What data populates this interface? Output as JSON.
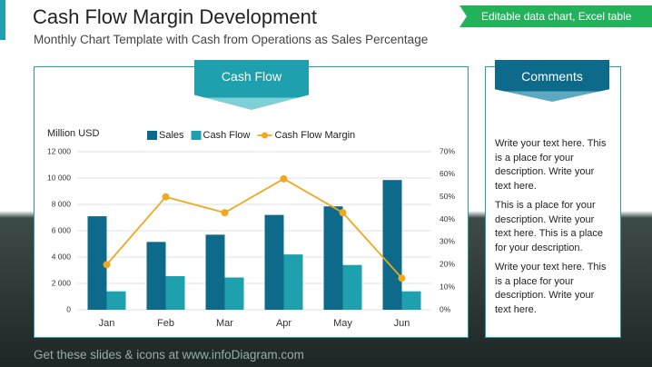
{
  "header": {
    "title": "Cash Flow Margin Development",
    "subtitle": "Monthly Chart Template with Cash from Operations as Sales Percentage",
    "badge": "Editable data chart, Excel table"
  },
  "chart_data": {
    "type": "bar",
    "title": "Cash Flow",
    "y_label": "Million USD",
    "categories": [
      "Jan",
      "Feb",
      "Mar",
      "Apr",
      "May",
      "Jun"
    ],
    "series": [
      {
        "name": "Sales",
        "color": "#0e6a8a",
        "values": [
          7100,
          5150,
          5700,
          7200,
          7850,
          9850
        ]
      },
      {
        "name": "Cash Flow",
        "color": "#1ea0ae",
        "values": [
          1400,
          2550,
          2450,
          4200,
          3400,
          1400
        ]
      },
      {
        "name": "Cash Flow Margin",
        "type": "line",
        "axis": "y2",
        "color": "#f0a820",
        "values": [
          20,
          50,
          43,
          58,
          43,
          14
        ]
      }
    ],
    "ylim": [
      0,
      12000
    ],
    "yticks": [
      0,
      {
        "value": 2000,
        "label": "2 000"
      },
      {
        "value": 4000,
        "label": "4 000"
      },
      {
        "value": 6000,
        "label": "6 000"
      },
      {
        "value": 8000,
        "label": "8 000"
      },
      {
        "value": 10000,
        "label": "10 000"
      },
      {
        "value": 12000,
        "label": "12 000"
      }
    ],
    "y2lim": [
      0,
      70
    ],
    "y2ticks": [
      {
        "value": 0,
        "label": "0%"
      },
      {
        "value": 10,
        "label": "10%"
      },
      {
        "value": 20,
        "label": "20%"
      },
      {
        "value": 30,
        "label": "30%"
      },
      {
        "value": 40,
        "label": "40%"
      },
      {
        "value": 50,
        "label": "50%"
      },
      {
        "value": 60,
        "label": "60%"
      },
      {
        "value": 70,
        "label": "70%"
      }
    ],
    "grid": true
  },
  "comments": {
    "title": "Comments",
    "paragraphs": [
      "Write your text here. This is a place for your description. Write your text here.",
      "This is a place for your description. Write your text here. This is a place for your description.",
      "Write your text here. This is a place for your description. Write your text here."
    ]
  },
  "footer": "Get these slides & icons at www.infoDiagram.com"
}
